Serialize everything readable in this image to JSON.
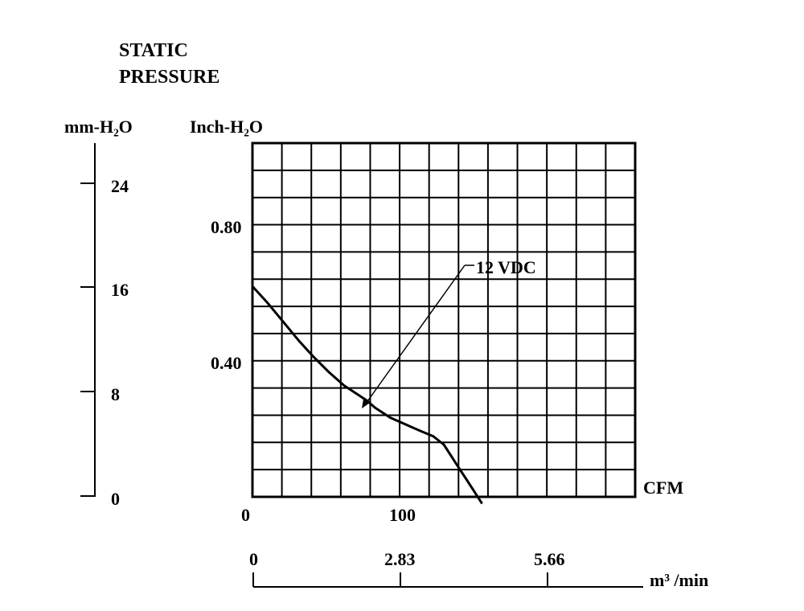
{
  "chart_data": {
    "type": "line",
    "title_line1": "STATIC",
    "title_line2": "PRESSURE",
    "y_left_label": "mm-H₂O",
    "y_right_label": "Inch-H₂O",
    "x_label": "CFM",
    "x2_label": "m³ /min",
    "x_ticks": [
      "0",
      "100"
    ],
    "x2_ticks": [
      "0",
      "2.83",
      "5.66"
    ],
    "y_right_ticks": [
      "0.80",
      "0.40"
    ],
    "y_left_ticks": [
      "24",
      "16",
      "8",
      "0"
    ],
    "xlim": [
      0,
      250
    ],
    "ylim_inch": [
      0,
      1.05
    ],
    "ylim_mm": [
      0,
      26.7
    ],
    "x2lim": [
      0,
      7.07
    ],
    "grid": true,
    "series": [
      {
        "name": "12 VDC",
        "x": [
          0,
          10,
          20,
          30,
          40,
          50,
          60,
          70,
          75,
          80,
          90,
          100,
          110,
          118,
          125,
          130,
          135,
          140,
          145,
          150
        ],
        "y": [
          0.625,
          0.575,
          0.52,
          0.465,
          0.415,
          0.37,
          0.33,
          0.3,
          0.285,
          0.265,
          0.235,
          0.215,
          0.195,
          0.18,
          0.155,
          0.12,
          0.085,
          0.05,
          0.015,
          -0.02
        ]
      }
    ]
  }
}
